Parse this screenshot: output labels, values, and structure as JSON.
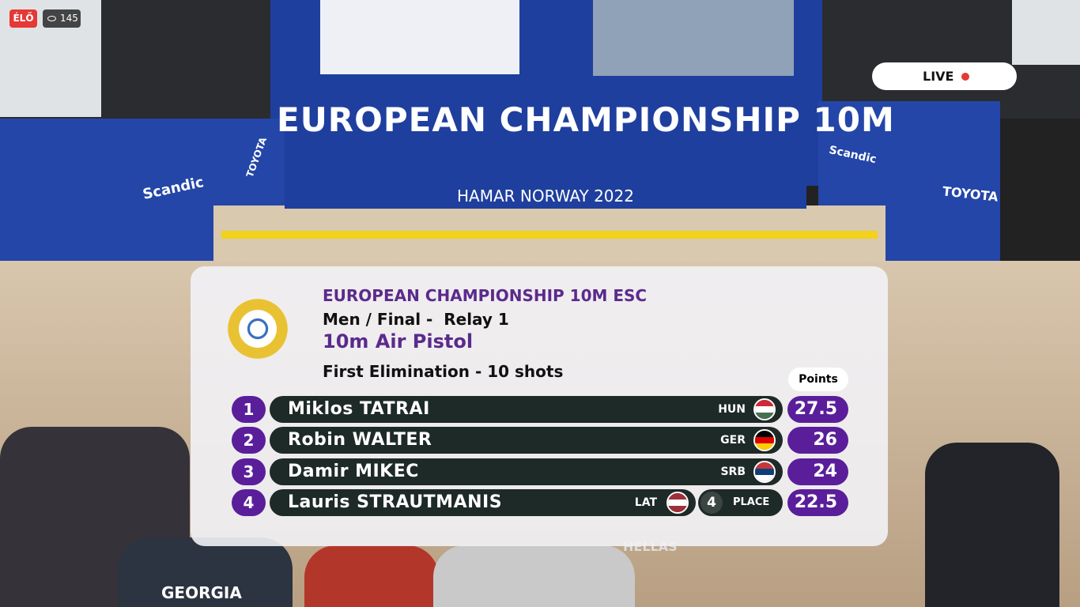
{
  "stream": {
    "live_badge": "ÉLŐ",
    "viewers": 145,
    "live_label": "LIVE"
  },
  "venue": {
    "banner": "EUROPEAN CHAMPIONSHIP 10M",
    "location": "HAMAR NORWAY 2022",
    "sponsor_left": "Scandic",
    "sponsor_right": "Scandic",
    "toyota_left": "TOYOTA",
    "toyota_right": "TOYOTA",
    "crowd_shirt_1": "GEORGIA",
    "crowd_shirt_2": "HELLAS"
  },
  "scoreboard": {
    "title": "EUROPEAN CHAMPIONSHIP 10M ESC",
    "subtitle": "Men / Final -  Relay 1",
    "event": "10m Air Pistol",
    "stage": "First Elimination - 10 shots",
    "points_header": "Points",
    "place_label": "PLACE",
    "rows": [
      {
        "rank": 1,
        "name": "Miklos TATRAI",
        "nation": "HUN",
        "points": 27.5
      },
      {
        "rank": 2,
        "name": "Robin WALTER",
        "nation": "GER",
        "points": 26
      },
      {
        "rank": 3,
        "name": "Damir MIKEC",
        "nation": "SRB",
        "points": 24
      },
      {
        "rank": 4,
        "name": "Lauris STRAUTMANIS",
        "nation": "LAT",
        "points": 22.5,
        "place": 4
      }
    ]
  }
}
